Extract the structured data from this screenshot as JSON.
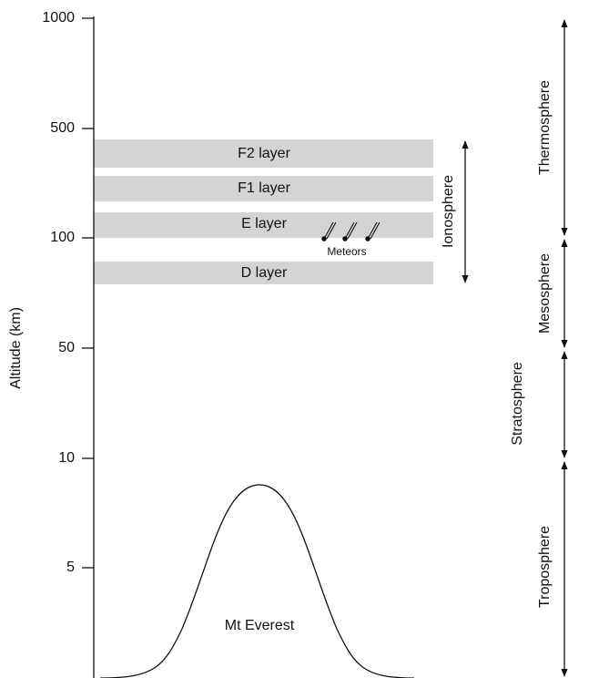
{
  "axis": {
    "title": "Altitude (km)",
    "ticks": [
      "1000",
      "500",
      "100",
      "50",
      "10",
      "5"
    ]
  },
  "layers": [
    "F2 layer",
    "F1 layer",
    "E layer",
    "D layer"
  ],
  "meteors_label": "Meteors",
  "ionosphere_label": "Ionosphere",
  "regions": [
    "Thermosphere",
    "Mesosphere",
    "Stratosphere",
    "Troposphere"
  ],
  "mountain_label": "Mt Everest"
}
